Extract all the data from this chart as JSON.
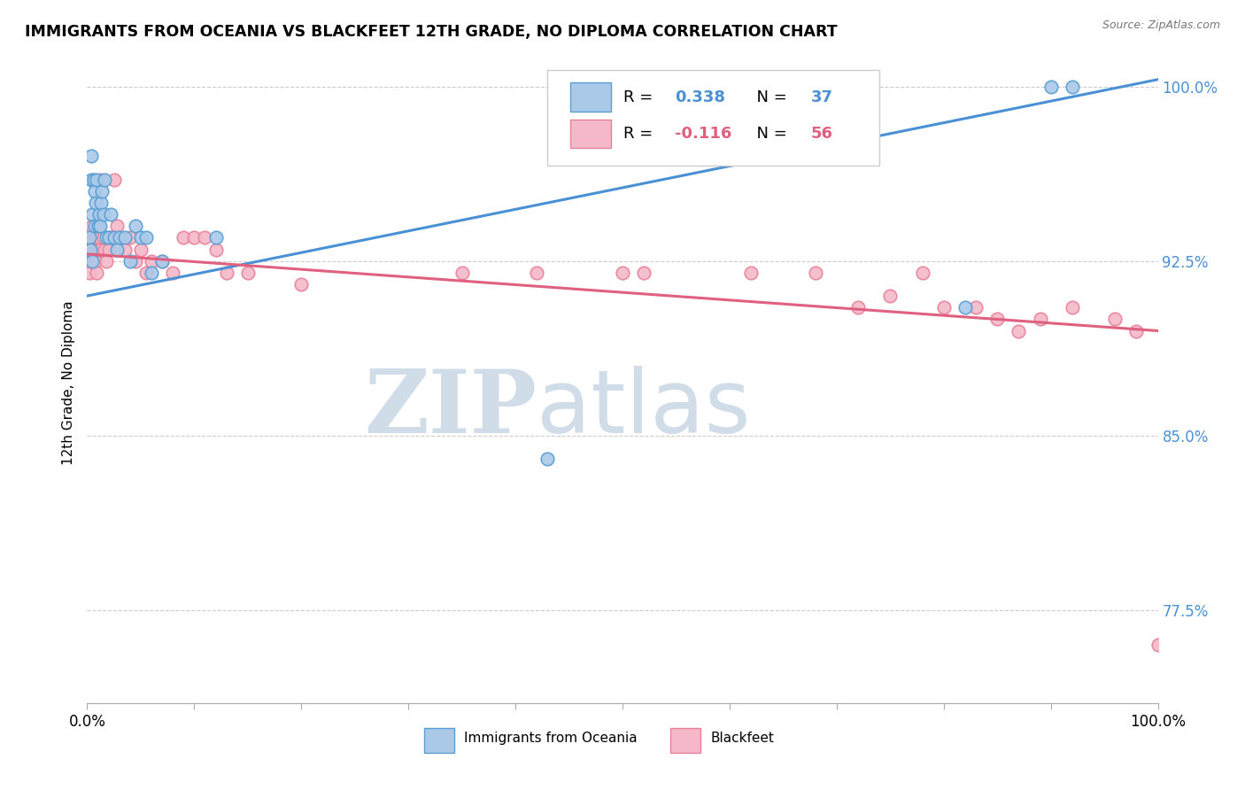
{
  "title": "IMMIGRANTS FROM OCEANIA VS BLACKFEET 12TH GRADE, NO DIPLOMA CORRELATION CHART",
  "source": "Source: ZipAtlas.com",
  "ylabel": "12th Grade, No Diploma",
  "ytick_labels": [
    "77.5%",
    "85.0%",
    "92.5%",
    "100.0%"
  ],
  "ytick_values": [
    0.775,
    0.85,
    0.925,
    1.0
  ],
  "legend_label1": "Immigrants from Oceania",
  "legend_label2": "Blackfeet",
  "R1": 0.338,
  "N1": 37,
  "R2": -0.116,
  "N2": 56,
  "blue_color": "#aac9e8",
  "pink_color": "#f4b8c8",
  "blue_edge_color": "#5a9fd4",
  "pink_edge_color": "#e8829a",
  "blue_line_color": "#4a90d4",
  "pink_line_color": "#e06080",
  "blue_x": [
    0.002,
    0.003,
    0.004,
    0.004,
    0.005,
    0.005,
    0.006,
    0.007,
    0.007,
    0.008,
    0.009,
    0.01,
    0.011,
    0.012,
    0.013,
    0.014,
    0.015,
    0.016,
    0.018,
    0.02,
    0.022,
    0.025,
    0.028,
    0.03,
    0.035,
    0.04,
    0.045,
    0.05,
    0.055,
    0.06,
    0.07,
    0.12,
    0.43,
    0.7,
    0.82,
    0.9,
    0.92
  ],
  "blue_y": [
    0.935,
    0.93,
    0.96,
    0.97,
    0.925,
    0.945,
    0.96,
    0.94,
    0.955,
    0.95,
    0.96,
    0.94,
    0.945,
    0.94,
    0.95,
    0.955,
    0.945,
    0.96,
    0.935,
    0.935,
    0.945,
    0.935,
    0.93,
    0.935,
    0.935,
    0.925,
    0.94,
    0.935,
    0.935,
    0.92,
    0.925,
    0.935,
    0.84,
    1.0,
    0.905,
    1.0,
    1.0
  ],
  "pink_x": [
    0.001,
    0.002,
    0.003,
    0.004,
    0.004,
    0.005,
    0.006,
    0.007,
    0.008,
    0.008,
    0.009,
    0.01,
    0.011,
    0.012,
    0.013,
    0.015,
    0.016,
    0.018,
    0.02,
    0.022,
    0.025,
    0.028,
    0.03,
    0.035,
    0.04,
    0.045,
    0.05,
    0.055,
    0.06,
    0.07,
    0.08,
    0.09,
    0.1,
    0.11,
    0.12,
    0.13,
    0.15,
    0.2,
    0.35,
    0.42,
    0.5,
    0.52,
    0.62,
    0.68,
    0.72,
    0.75,
    0.78,
    0.8,
    0.83,
    0.85,
    0.87,
    0.89,
    0.92,
    0.96,
    0.98,
    1.0
  ],
  "pink_y": [
    0.93,
    0.92,
    0.93,
    0.925,
    0.935,
    0.94,
    0.93,
    0.935,
    0.925,
    0.935,
    0.92,
    0.93,
    0.935,
    0.93,
    0.96,
    0.935,
    0.93,
    0.925,
    0.93,
    0.935,
    0.96,
    0.94,
    0.935,
    0.93,
    0.935,
    0.925,
    0.93,
    0.92,
    0.925,
    0.925,
    0.92,
    0.935,
    0.935,
    0.935,
    0.93,
    0.92,
    0.92,
    0.915,
    0.92,
    0.92,
    0.92,
    0.92,
    0.92,
    0.92,
    0.905,
    0.91,
    0.92,
    0.905,
    0.905,
    0.9,
    0.895,
    0.9,
    0.905,
    0.9,
    0.895,
    0.76
  ],
  "xlim": [
    0.0,
    1.0
  ],
  "ylim": [
    0.735,
    1.01
  ],
  "blue_line_x0": 0.0,
  "blue_line_y0": 0.91,
  "blue_line_x1": 1.0,
  "blue_line_y1": 1.003,
  "pink_line_x0": 0.0,
  "pink_line_y0": 0.928,
  "pink_line_x1": 1.0,
  "pink_line_y1": 0.895,
  "watermark_zip": "ZIP",
  "watermark_atlas": "atlas",
  "watermark_color": "#d0dce8"
}
